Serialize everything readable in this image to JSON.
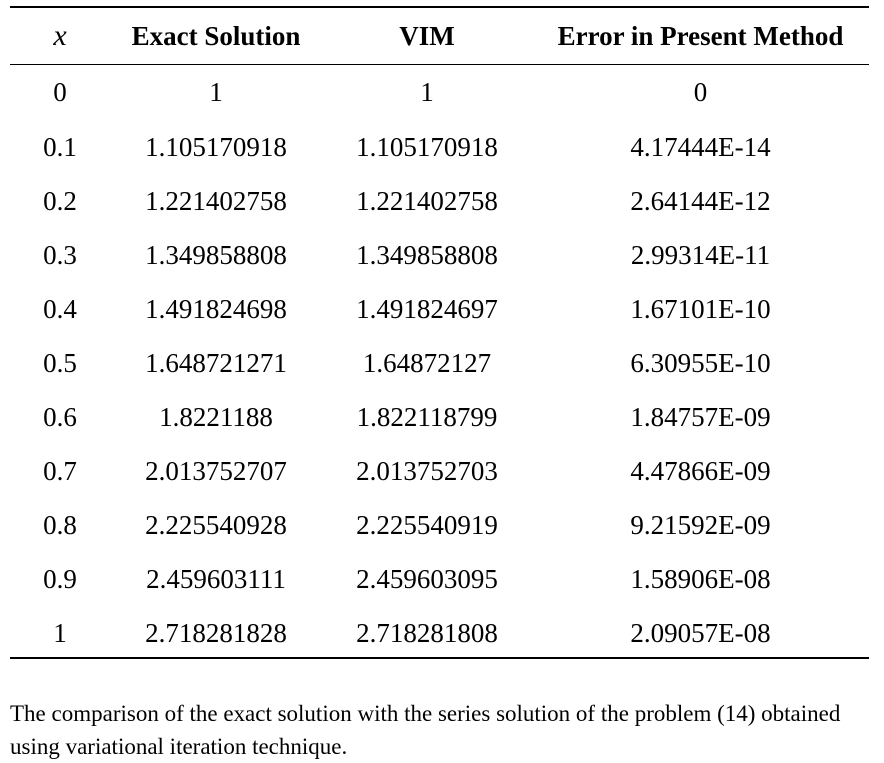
{
  "table": {
    "headers": [
      "x",
      "Exact Solution",
      "VIM",
      "Error in Present Method"
    ],
    "rows": [
      [
        "0",
        "1",
        "1",
        "0"
      ],
      [
        "0.1",
        "1.105170918",
        "1.105170918",
        "4.17444E-14"
      ],
      [
        "0.2",
        "1.221402758",
        "1.221402758",
        "2.64144E-12"
      ],
      [
        "0.3",
        "1.349858808",
        "1.349858808",
        "2.99314E-11"
      ],
      [
        "0.4",
        "1.491824698",
        "1.491824697",
        "1.67101E-10"
      ],
      [
        "0.5",
        "1.648721271",
        "1.64872127",
        "6.30955E-10"
      ],
      [
        "0.6",
        "1.8221188",
        "1.822118799",
        "1.84757E-09"
      ],
      [
        "0.7",
        "2.013752707",
        "2.013752703",
        "4.47866E-09"
      ],
      [
        "0.8",
        "2.225540928",
        "2.225540919",
        "9.21592E-09"
      ],
      [
        "0.9",
        "2.459603111",
        "2.459603095",
        "1.58906E-08"
      ],
      [
        "1",
        "2.718281828",
        "2.718281808",
        "2.09057E-08"
      ]
    ]
  },
  "caption": "The comparison of the exact solution with the series solution of the problem (14) obtained using variational iteration technique."
}
